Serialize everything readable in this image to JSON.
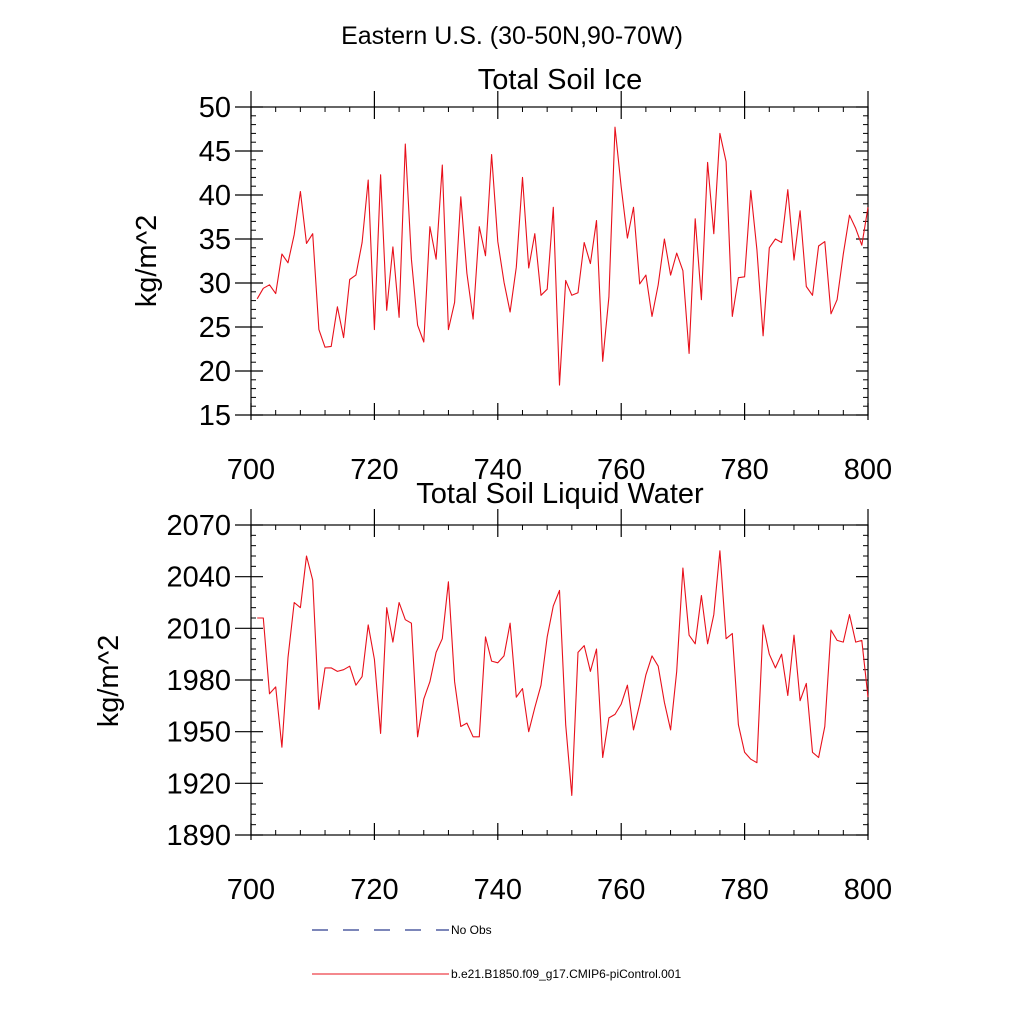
{
  "page": {
    "suptitle": "Eastern U.S. (30-50N,90-70W)"
  },
  "legend": {
    "entries": [
      {
        "label": "No Obs",
        "color": "#2f3f8f",
        "style": "dashed"
      },
      {
        "label": "b.e21.B1850.f09_g17.CMIP6-piControl.001",
        "color": "#e8101b",
        "style": "solid"
      }
    ]
  },
  "chart_data": [
    {
      "type": "line",
      "title": "Total Soil Ice",
      "xlabel": "",
      "ylabel": "kg/m^2",
      "xlim": [
        700,
        800
      ],
      "ylim": [
        15,
        50
      ],
      "xticks": [
        700,
        720,
        740,
        760,
        780,
        800
      ],
      "yticks": [
        15,
        20,
        25,
        30,
        35,
        40,
        45,
        50
      ],
      "grid": false,
      "series": [
        {
          "name": "b.e21.B1850.f09_g17.CMIP6-piControl.001",
          "color": "#e8101b",
          "x": [
            701,
            702,
            703,
            704,
            705,
            706,
            707,
            708,
            709,
            710,
            711,
            712,
            713,
            714,
            715,
            716,
            717,
            718,
            719,
            720,
            721,
            722,
            723,
            724,
            725,
            726,
            727,
            728,
            729,
            730,
            731,
            732,
            733,
            734,
            735,
            736,
            737,
            738,
            739,
            740,
            741,
            742,
            743,
            744,
            745,
            746,
            747,
            748,
            749,
            750,
            751,
            752,
            753,
            754,
            755,
            756,
            757,
            758,
            759,
            760,
            761,
            762,
            763,
            764,
            765,
            766,
            767,
            768,
            769,
            770,
            771,
            772,
            773,
            774,
            775,
            776,
            777,
            778,
            779,
            780,
            781,
            782,
            783,
            784,
            785,
            786,
            787,
            788,
            789,
            790,
            791,
            792,
            793,
            794,
            795,
            796,
            797,
            798,
            799,
            800
          ],
          "values": [
            28.2,
            29.4,
            29.8,
            28.8,
            33.3,
            32.3,
            35.5,
            40.4,
            34.5,
            35.6,
            24.7,
            22.7,
            22.8,
            27.3,
            23.8,
            30.4,
            30.9,
            34.6,
            41.7,
            24.7,
            42.3,
            26.9,
            34.1,
            26.1,
            45.8,
            32.7,
            25.2,
            23.3,
            36.4,
            32.7,
            43.4,
            24.7,
            27.8,
            39.8,
            31.1,
            25.9,
            36.4,
            33.1,
            44.6,
            34.7,
            30.1,
            26.7,
            31.8,
            42.0,
            31.7,
            35.6,
            28.6,
            29.3,
            38.6,
            18.4,
            30.3,
            28.6,
            28.9,
            34.6,
            32.2,
            37.1,
            21.1,
            28.4,
            47.7,
            40.9,
            35.1,
            38.6,
            29.9,
            30.9,
            26.2,
            29.8,
            35.0,
            30.9,
            33.4,
            31.4,
            22.0,
            37.3,
            28.1,
            43.7,
            35.6,
            47.0,
            43.8,
            26.2,
            30.6,
            30.7,
            40.5,
            33.8,
            24.0,
            34.0,
            35.0,
            34.6,
            40.6,
            32.6,
            38.2,
            29.6,
            28.6,
            34.2,
            34.7,
            26.5,
            28.1,
            33.3,
            37.7,
            36.2,
            34.3,
            38.6
          ]
        }
      ]
    },
    {
      "type": "line",
      "title": "Total Soil Liquid Water",
      "xlabel": "",
      "ylabel": "kg/m^2",
      "xlim": [
        700,
        800
      ],
      "ylim": [
        1890,
        2070
      ],
      "xticks": [
        700,
        720,
        740,
        760,
        780,
        800
      ],
      "yticks": [
        1890,
        1920,
        1950,
        1980,
        2010,
        2040,
        2070
      ],
      "grid": false,
      "series": [
        {
          "name": "b.e21.B1850.f09_g17.CMIP6-piControl.001",
          "color": "#e8101b",
          "x": [
            701,
            702,
            703,
            704,
            705,
            706,
            707,
            708,
            709,
            710,
            711,
            712,
            713,
            714,
            715,
            716,
            717,
            718,
            719,
            720,
            721,
            722,
            723,
            724,
            725,
            726,
            727,
            728,
            729,
            730,
            731,
            732,
            733,
            734,
            735,
            736,
            737,
            738,
            739,
            740,
            741,
            742,
            743,
            744,
            745,
            746,
            747,
            748,
            749,
            750,
            751,
            752,
            753,
            754,
            755,
            756,
            757,
            758,
            759,
            760,
            761,
            762,
            763,
            764,
            765,
            766,
            767,
            768,
            769,
            770,
            771,
            772,
            773,
            774,
            775,
            776,
            777,
            778,
            779,
            780,
            781,
            782,
            783,
            784,
            785,
            786,
            787,
            788,
            789,
            790,
            791,
            792,
            793,
            794,
            795,
            796,
            797,
            798,
            799,
            800
          ],
          "values": [
            2016,
            2016,
            1972,
            1976,
            1941,
            1993,
            2025,
            2022,
            2052,
            2038,
            1963,
            1987,
            1987,
            1985,
            1986,
            1988,
            1977,
            1982,
            2012,
            1992,
            1949,
            2022,
            2002,
            2025,
            2015,
            2013,
            1947,
            1969,
            1979,
            1996,
            2004,
            2037,
            1979,
            1953,
            1955,
            1947,
            1947,
            2005,
            1991,
            1990,
            1994,
            2013,
            1970,
            1975,
            1950,
            1964,
            1977,
            2005,
            2023,
            2032,
            1954,
            1913,
            1996,
            2000,
            1985,
            1998,
            1935,
            1958,
            1960,
            1966,
            1977,
            1951,
            1966,
            1983,
            1994,
            1988,
            1967,
            1951,
            1985,
            2045,
            2006,
            2001,
            2029,
            2001,
            2018,
            2055,
            2004,
            2007,
            1954,
            1938,
            1934,
            1932,
            2012,
            1995,
            1987,
            1995,
            1971,
            2006,
            1968,
            1978,
            1938,
            1935,
            1953,
            2009,
            2003,
            2002,
            2018,
            2002,
            2003,
            1970
          ]
        }
      ]
    }
  ]
}
